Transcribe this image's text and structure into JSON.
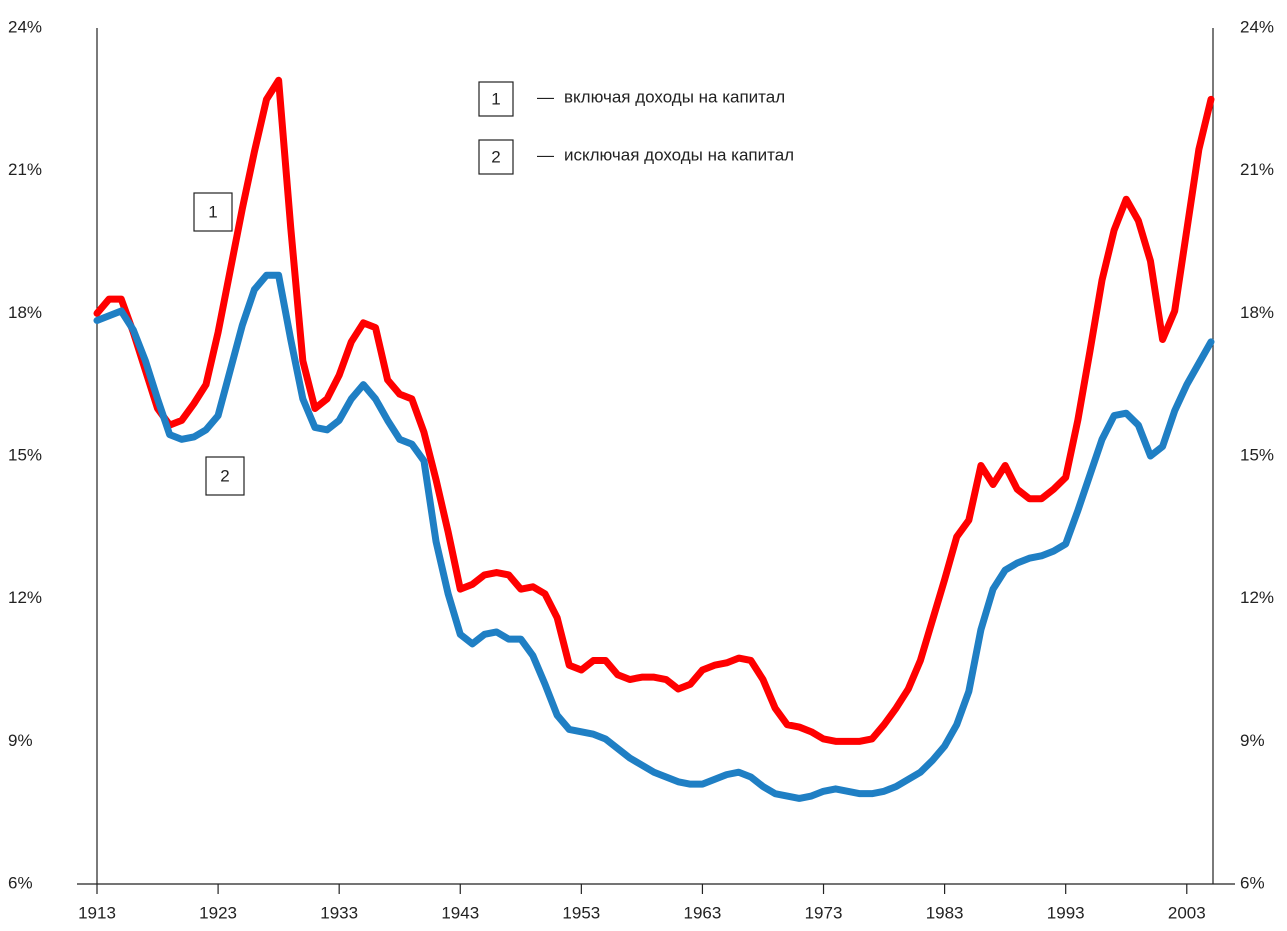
{
  "chart_data": {
    "type": "line",
    "x": [
      1913,
      1914,
      1915,
      1916,
      1917,
      1918,
      1919,
      1920,
      1921,
      1922,
      1923,
      1924,
      1925,
      1926,
      1927,
      1928,
      1929,
      1930,
      1931,
      1932,
      1933,
      1934,
      1935,
      1936,
      1937,
      1938,
      1939,
      1940,
      1941,
      1942,
      1943,
      1944,
      1945,
      1946,
      1947,
      1948,
      1949,
      1950,
      1951,
      1952,
      1953,
      1954,
      1955,
      1956,
      1957,
      1958,
      1959,
      1960,
      1961,
      1962,
      1963,
      1964,
      1965,
      1966,
      1967,
      1968,
      1969,
      1970,
      1971,
      1972,
      1973,
      1974,
      1975,
      1976,
      1977,
      1978,
      1979,
      1980,
      1981,
      1982,
      1983,
      1984,
      1985,
      1986,
      1987,
      1988,
      1989,
      1990,
      1991,
      1992,
      1993,
      1994,
      1995,
      1996,
      1997,
      1998,
      1999,
      2000,
      2001,
      2002,
      2003,
      2004,
      2005
    ],
    "series": [
      {
        "name": "включая доходы на капитал",
        "label": "1",
        "color": "#ff0000",
        "values": [
          18.0,
          18.3,
          18.3,
          17.6,
          16.8,
          16.0,
          15.65,
          15.75,
          16.1,
          16.5,
          17.6,
          18.9,
          20.2,
          21.4,
          22.5,
          22.9,
          19.8,
          17.0,
          16.0,
          16.2,
          16.7,
          17.4,
          17.8,
          17.7,
          16.6,
          16.3,
          16.2,
          15.5,
          14.5,
          13.4,
          12.2,
          12.3,
          12.5,
          12.55,
          12.5,
          12.2,
          12.25,
          12.1,
          11.6,
          10.6,
          10.5,
          10.7,
          10.7,
          10.4,
          10.3,
          10.35,
          10.35,
          10.3,
          10.1,
          10.2,
          10.5,
          10.6,
          10.65,
          10.75,
          10.7,
          10.3,
          9.7,
          9.35,
          9.3,
          9.2,
          9.05,
          9.0,
          9.0,
          9.0,
          9.05,
          9.35,
          9.7,
          10.1,
          10.7,
          11.55,
          12.4,
          13.3,
          13.65,
          14.8,
          14.4,
          14.8,
          14.3,
          14.1,
          14.1,
          14.3,
          14.55,
          15.75,
          17.2,
          18.7,
          19.75,
          20.4,
          19.95,
          19.1,
          17.45,
          18.05,
          19.75,
          21.45,
          22.5
        ]
      },
      {
        "name": "исключая доходы на капитал",
        "label": "2",
        "color": "#1f7fc4",
        "values": [
          17.85,
          17.95,
          18.05,
          17.65,
          17.0,
          16.2,
          15.45,
          15.35,
          15.4,
          15.55,
          15.85,
          16.8,
          17.75,
          18.5,
          18.8,
          18.8,
          17.45,
          16.2,
          15.6,
          15.55,
          15.75,
          16.2,
          16.5,
          16.2,
          15.75,
          15.35,
          15.25,
          14.9,
          13.2,
          12.1,
          11.25,
          11.05,
          11.25,
          11.3,
          11.15,
          11.15,
          10.8,
          10.2,
          9.55,
          9.25,
          9.2,
          9.15,
          9.05,
          8.85,
          8.65,
          8.5,
          8.35,
          8.25,
          8.15,
          8.1,
          8.1,
          8.2,
          8.3,
          8.35,
          8.25,
          8.05,
          7.9,
          7.85,
          7.8,
          7.85,
          7.95,
          8.0,
          7.95,
          7.9,
          7.9,
          7.95,
          8.05,
          8.2,
          8.35,
          8.6,
          8.9,
          9.35,
          10.05,
          11.35,
          12.2,
          12.6,
          12.75,
          12.85,
          12.9,
          13.0,
          13.15,
          13.85,
          14.6,
          15.35,
          15.85,
          15.9,
          15.65,
          15.0,
          15.2,
          15.95,
          16.5,
          16.95,
          17.4
        ]
      }
    ],
    "xlim": [
      1913,
      2005
    ],
    "xticks": [
      1913,
      1923,
      1933,
      1943,
      1953,
      1963,
      1973,
      1983,
      1993,
      2003
    ],
    "ylim": [
      6,
      24
    ],
    "yticks": [
      {
        "value": 6,
        "label": "6%"
      },
      {
        "value": 9,
        "label": "9%"
      },
      {
        "value": 12,
        "label": "12%"
      },
      {
        "value": 15,
        "label": "15%"
      },
      {
        "value": 18,
        "label": "18%"
      },
      {
        "value": 21,
        "label": "21%"
      },
      {
        "value": 24,
        "label": "24%"
      }
    ],
    "y2lim": [
      6,
      24
    ],
    "y2ticks": [
      {
        "value": 6,
        "label": "6%"
      },
      {
        "value": 9,
        "label": "9%"
      },
      {
        "value": 12,
        "label": "12%"
      },
      {
        "value": 15,
        "label": "15%"
      },
      {
        "value": 18,
        "label": "18%"
      },
      {
        "value": 21,
        "label": "21%"
      },
      {
        "value": 24,
        "label": "24%"
      }
    ]
  }
}
